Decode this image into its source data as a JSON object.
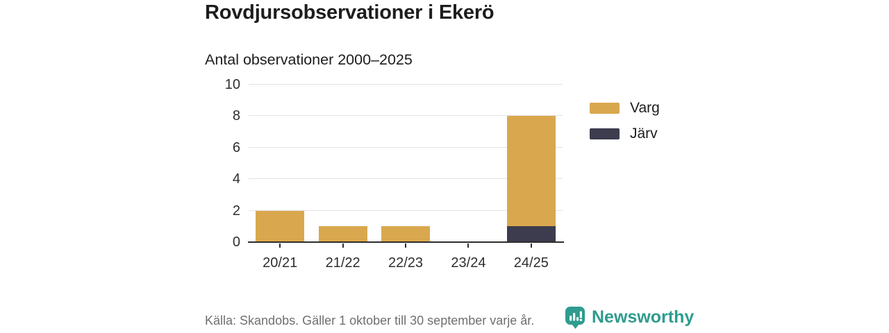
{
  "header": {
    "title": "Rovdjursobservationer i Ekerö",
    "subtitle": "Antal observationer 2000–2025"
  },
  "chart_data": {
    "type": "bar",
    "stacked": true,
    "title": "Rovdjursobservationer i Ekerö",
    "subtitle": "Antal observationer 2000–2025",
    "categories": [
      "20/21",
      "21/22",
      "22/23",
      "23/24",
      "24/25"
    ],
    "series": [
      {
        "name": "Varg",
        "color": "#D9A84E",
        "values": [
          2,
          1,
          1,
          0,
          7
        ]
      },
      {
        "name": "Järv",
        "color": "#3C3C4E",
        "values": [
          0,
          0,
          0,
          0,
          1
        ]
      }
    ],
    "stack_order_bottom_to_top": [
      "Järv",
      "Varg"
    ],
    "totals": [
      2,
      1,
      1,
      0,
      8
    ],
    "xlabel": "",
    "ylabel": "",
    "ylim": [
      0,
      10
    ],
    "yticks": [
      0,
      2,
      4,
      6,
      8,
      10
    ],
    "grid": true,
    "legend_position": "right"
  },
  "legend": {
    "items": [
      {
        "label": "Varg",
        "color": "#D9A84E"
      },
      {
        "label": "Järv",
        "color": "#3C3C4E"
      }
    ]
  },
  "footer": {
    "source": "Källa: Skandobs. Gäller 1 oktober till 30 september varje år.",
    "brand": "Newsworthy"
  },
  "colors": {
    "varg": "#D9A84E",
    "jarv": "#3C3C4E",
    "grid": "#E3E3E3",
    "axis": "#2D2D2D",
    "text": "#1D1D1D",
    "muted": "#6F6F6F",
    "brand": "#2E9C8E",
    "background": "#FFFFFF"
  }
}
